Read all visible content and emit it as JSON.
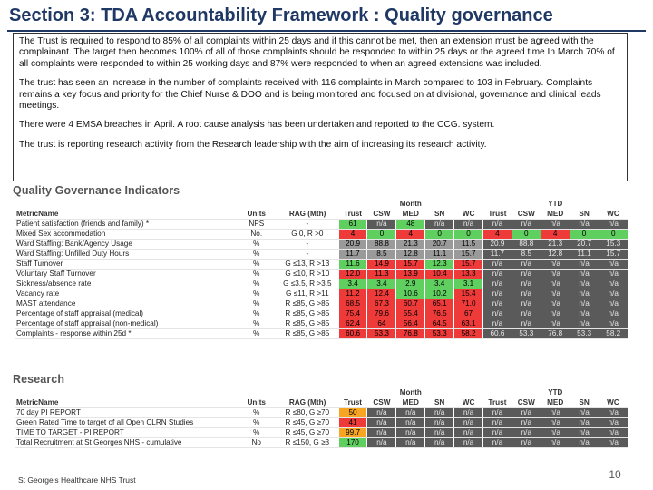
{
  "title": "Section 3: TDA Accountability Framework : Quality governance",
  "paragraphs": [
    "The Trust is required to respond to 85% of all complaints within 25 days and if this cannot be met,   then an extension must be agreed with the complainant. The target then becomes 100% of all of those complaints should be responded to within 25 days or the agreed time  In March 70%  of  all complaints were responded to within 25 working days  and 87% were responded to when  an agreed extensions was included.",
    "The trust has seen an increase in the number of complaints received  with 116 complaints in  March compared to 103 in February.  Complaints remains a  key focus and priority for the Chief Nurse & DOO  and is being monitored and focused on at divisional, governance and clinical leads meetings.",
    " There were 4 EMSA breaches in April.  A root cause analysis has been undertaken and reported to the CCG. system.",
    "The trust is reporting research activity from the Research  leadership with the aim of increasing its research activity."
  ],
  "quality": {
    "heading": "Quality Governance Indicators",
    "group_month": "Month",
    "group_ytd": "YTD",
    "headers": [
      "MetricName",
      "Units",
      "RAG (Mth)",
      "Trust",
      "CSW",
      "MED",
      "SN",
      "WC",
      "Trust",
      "CSW",
      "MED",
      "SN",
      "WC"
    ],
    "rows": [
      {
        "name": "Patient satisfaction (friends and family) *",
        "units": "NPS",
        "rag": "-",
        "cells": [
          {
            "v": "61",
            "c": "g"
          },
          {
            "v": "n/a",
            "c": "d"
          },
          {
            "v": "48",
            "c": "g"
          },
          {
            "v": "n/a",
            "c": "d"
          },
          {
            "v": "n/a",
            "c": "d"
          },
          {
            "v": "n/a",
            "c": "d"
          },
          {
            "v": "n/a",
            "c": "d"
          },
          {
            "v": "n/a",
            "c": "d"
          },
          {
            "v": "n/a",
            "c": "d"
          },
          {
            "v": "n/a",
            "c": "d"
          }
        ]
      },
      {
        "name": "Mixed Sex accommodation",
        "units": "No.",
        "rag": "G 0, R >0",
        "cells": [
          {
            "v": "4",
            "c": "r"
          },
          {
            "v": "0",
            "c": "g"
          },
          {
            "v": "4",
            "c": "r"
          },
          {
            "v": "0",
            "c": "g"
          },
          {
            "v": "0",
            "c": "g"
          },
          {
            "v": "4",
            "c": "r"
          },
          {
            "v": "0",
            "c": "g"
          },
          {
            "v": "4",
            "c": "r"
          },
          {
            "v": "0",
            "c": "g"
          },
          {
            "v": "0",
            "c": "g"
          }
        ]
      },
      {
        "name": "Ward Staffing: Bank/Agency Usage",
        "units": "%",
        "rag": "-",
        "cells": [
          {
            "v": "20.9",
            "c": "x"
          },
          {
            "v": "88.8",
            "c": "x"
          },
          {
            "v": "21.3",
            "c": "x"
          },
          {
            "v": "20.7",
            "c": "x"
          },
          {
            "v": "11.5",
            "c": "x"
          },
          {
            "v": "20.9",
            "c": "d"
          },
          {
            "v": "88.8",
            "c": "d"
          },
          {
            "v": "21.3",
            "c": "d"
          },
          {
            "v": "20.7",
            "c": "d"
          },
          {
            "v": "15.3",
            "c": "d"
          }
        ]
      },
      {
        "name": "Ward Staffing: Unfilled Duty Hours",
        "units": "%",
        "rag": "-",
        "cells": [
          {
            "v": "11.7",
            "c": "x"
          },
          {
            "v": "8.5",
            "c": "x"
          },
          {
            "v": "12.8",
            "c": "x"
          },
          {
            "v": "11.1",
            "c": "x"
          },
          {
            "v": "15.7",
            "c": "x"
          },
          {
            "v": "11.7",
            "c": "d"
          },
          {
            "v": "8.5",
            "c": "d"
          },
          {
            "v": "12.8",
            "c": "d"
          },
          {
            "v": "11.1",
            "c": "d"
          },
          {
            "v": "15.7",
            "c": "d"
          }
        ]
      },
      {
        "name": "Staff Turnover",
        "units": "%",
        "rag": "G ≤13, R >13",
        "cells": [
          {
            "v": "11.6",
            "c": "g"
          },
          {
            "v": "14.9",
            "c": "r"
          },
          {
            "v": "15.7",
            "c": "r"
          },
          {
            "v": "12.3",
            "c": "g"
          },
          {
            "v": "15.7",
            "c": "r"
          },
          {
            "v": "n/a",
            "c": "d"
          },
          {
            "v": "n/a",
            "c": "d"
          },
          {
            "v": "n/a",
            "c": "d"
          },
          {
            "v": "n/a",
            "c": "d"
          },
          {
            "v": "n/a",
            "c": "d"
          }
        ]
      },
      {
        "name": "Voluntary Staff Turnover",
        "units": "%",
        "rag": "G ≤10, R >10",
        "cells": [
          {
            "v": "12.0",
            "c": "r"
          },
          {
            "v": "11.3",
            "c": "r"
          },
          {
            "v": "13.9",
            "c": "r"
          },
          {
            "v": "10.4",
            "c": "r"
          },
          {
            "v": "13.3",
            "c": "r"
          },
          {
            "v": "n/a",
            "c": "d"
          },
          {
            "v": "n/a",
            "c": "d"
          },
          {
            "v": "n/a",
            "c": "d"
          },
          {
            "v": "n/a",
            "c": "d"
          },
          {
            "v": "n/a",
            "c": "d"
          }
        ]
      },
      {
        "name": "Sickness/absence rate",
        "units": "%",
        "rag": "G ≤3.5, R >3.5",
        "cells": [
          {
            "v": "3.4",
            "c": "g"
          },
          {
            "v": "3.4",
            "c": "g"
          },
          {
            "v": "2.9",
            "c": "g"
          },
          {
            "v": "3.4",
            "c": "g"
          },
          {
            "v": "3.1",
            "c": "g"
          },
          {
            "v": "n/a",
            "c": "d"
          },
          {
            "v": "n/a",
            "c": "d"
          },
          {
            "v": "n/a",
            "c": "d"
          },
          {
            "v": "n/a",
            "c": "d"
          },
          {
            "v": "n/a",
            "c": "d"
          }
        ]
      },
      {
        "name": "Vacancy rate",
        "units": "%",
        "rag": "G ≤11, R >11",
        "cells": [
          {
            "v": "11.2",
            "c": "r"
          },
          {
            "v": "12.4",
            "c": "r"
          },
          {
            "v": "10.6",
            "c": "g"
          },
          {
            "v": "10.2",
            "c": "g"
          },
          {
            "v": "15.4",
            "c": "r"
          },
          {
            "v": "n/a",
            "c": "d"
          },
          {
            "v": "n/a",
            "c": "d"
          },
          {
            "v": "n/a",
            "c": "d"
          },
          {
            "v": "n/a",
            "c": "d"
          },
          {
            "v": "n/a",
            "c": "d"
          }
        ]
      },
      {
        "name": "MAST attendance",
        "units": "%",
        "rag": "R ≤85, G >85",
        "cells": [
          {
            "v": "68.5",
            "c": "r"
          },
          {
            "v": "67.3",
            "c": "r"
          },
          {
            "v": "60.7",
            "c": "r"
          },
          {
            "v": "65.1",
            "c": "r"
          },
          {
            "v": "71.0",
            "c": "r"
          },
          {
            "v": "n/a",
            "c": "d"
          },
          {
            "v": "n/a",
            "c": "d"
          },
          {
            "v": "n/a",
            "c": "d"
          },
          {
            "v": "n/a",
            "c": "d"
          },
          {
            "v": "n/a",
            "c": "d"
          }
        ]
      },
      {
        "name": "Percentage of staff appraisal (medical)",
        "units": "%",
        "rag": "R ≤85, G >85",
        "cells": [
          {
            "v": "75.4",
            "c": "r"
          },
          {
            "v": "79.6",
            "c": "r"
          },
          {
            "v": "55.4",
            "c": "r"
          },
          {
            "v": "76.5",
            "c": "r"
          },
          {
            "v": "67",
            "c": "r"
          },
          {
            "v": "n/a",
            "c": "d"
          },
          {
            "v": "n/a",
            "c": "d"
          },
          {
            "v": "n/a",
            "c": "d"
          },
          {
            "v": "n/a",
            "c": "d"
          },
          {
            "v": "n/a",
            "c": "d"
          }
        ]
      },
      {
        "name": "Percentage of staff appraisal (non-medical)",
        "units": "%",
        "rag": "R ≤85, G >85",
        "cells": [
          {
            "v": "62.4",
            "c": "r"
          },
          {
            "v": "64",
            "c": "r"
          },
          {
            "v": "56.4",
            "c": "r"
          },
          {
            "v": "64.5",
            "c": "r"
          },
          {
            "v": "63.1",
            "c": "r"
          },
          {
            "v": "n/a",
            "c": "d"
          },
          {
            "v": "n/a",
            "c": "d"
          },
          {
            "v": "n/a",
            "c": "d"
          },
          {
            "v": "n/a",
            "c": "d"
          },
          {
            "v": "n/a",
            "c": "d"
          }
        ]
      },
      {
        "name": "Complaints - response within 25d *",
        "units": "%",
        "rag": "R ≤85, G >85",
        "cells": [
          {
            "v": "60.6",
            "c": "r"
          },
          {
            "v": "53.3",
            "c": "r"
          },
          {
            "v": "76.8",
            "c": "r"
          },
          {
            "v": "53.3",
            "c": "r"
          },
          {
            "v": "58.2",
            "c": "r"
          },
          {
            "v": "60.6",
            "c": "d"
          },
          {
            "v": "53.3",
            "c": "d"
          },
          {
            "v": "76.8",
            "c": "d"
          },
          {
            "v": "53.3",
            "c": "d"
          },
          {
            "v": "58.2",
            "c": "d"
          }
        ]
      }
    ]
  },
  "research": {
    "heading": "Research",
    "group_month": "Month",
    "group_ytd": "YTD",
    "headers": [
      "MetricName",
      "Units",
      "RAG (Mth)",
      "Trust",
      "CSW",
      "MED",
      "SN",
      "WC",
      "Trust",
      "CSW",
      "MED",
      "SN",
      "WC"
    ],
    "rows": [
      {
        "name": "70 day  PI REPORT",
        "units": "%",
        "rag": "R ≤80, G ≥70",
        "cells": [
          {
            "v": "50",
            "c": "a"
          },
          {
            "v": "n/a",
            "c": "d"
          },
          {
            "v": "n/a",
            "c": "d"
          },
          {
            "v": "n/a",
            "c": "d"
          },
          {
            "v": "n/a",
            "c": "d"
          },
          {
            "v": "n/a",
            "c": "d"
          },
          {
            "v": "n/a",
            "c": "d"
          },
          {
            "v": "n/a",
            "c": "d"
          },
          {
            "v": "n/a",
            "c": "d"
          },
          {
            "v": "n/a",
            "c": "d"
          }
        ]
      },
      {
        "name": "Green Rated Time to target of all Open CLRN Studies",
        "units": "%",
        "rag": "R ≤45, G ≥70",
        "cells": [
          {
            "v": "41",
            "c": "r"
          },
          {
            "v": "n/a",
            "c": "d"
          },
          {
            "v": "n/a",
            "c": "d"
          },
          {
            "v": "n/a",
            "c": "d"
          },
          {
            "v": "n/a",
            "c": "d"
          },
          {
            "v": "n/a",
            "c": "d"
          },
          {
            "v": "n/a",
            "c": "d"
          },
          {
            "v": "n/a",
            "c": "d"
          },
          {
            "v": "n/a",
            "c": "d"
          },
          {
            "v": "n/a",
            "c": "d"
          }
        ]
      },
      {
        "name": "TIME TO TARGET - PI REPORT",
        "units": "%",
        "rag": "R ≤45, G ≥70",
        "cells": [
          {
            "v": "99.7",
            "c": "a"
          },
          {
            "v": "n/a",
            "c": "d"
          },
          {
            "v": "n/a",
            "c": "d"
          },
          {
            "v": "n/a",
            "c": "d"
          },
          {
            "v": "n/a",
            "c": "d"
          },
          {
            "v": "n/a",
            "c": "d"
          },
          {
            "v": "n/a",
            "c": "d"
          },
          {
            "v": "n/a",
            "c": "d"
          },
          {
            "v": "n/a",
            "c": "d"
          },
          {
            "v": "n/a",
            "c": "d"
          }
        ]
      },
      {
        "name": "Total Recruitment at St Georges NHS - cumulative",
        "units": "No",
        "rag": "R ≤150, G ≥3",
        "cells": [
          {
            "v": "170",
            "c": "g"
          },
          {
            "v": "n/a",
            "c": "d"
          },
          {
            "v": "n/a",
            "c": "d"
          },
          {
            "v": "n/a",
            "c": "d"
          },
          {
            "v": "n/a",
            "c": "d"
          },
          {
            "v": "n/a",
            "c": "d"
          },
          {
            "v": "n/a",
            "c": "d"
          },
          {
            "v": "n/a",
            "c": "d"
          },
          {
            "v": "n/a",
            "c": "d"
          },
          {
            "v": "n/a",
            "c": "d"
          }
        ]
      }
    ]
  },
  "footer": "St George's Healthcare NHS Trust",
  "page_number": "10",
  "colors": {
    "title": "#1f3864",
    "green": "#5fcf5f",
    "red": "#ef3a3a",
    "amber": "#f6a623",
    "dark": "#5a5a5a",
    "grey": "#9a9a9a"
  }
}
